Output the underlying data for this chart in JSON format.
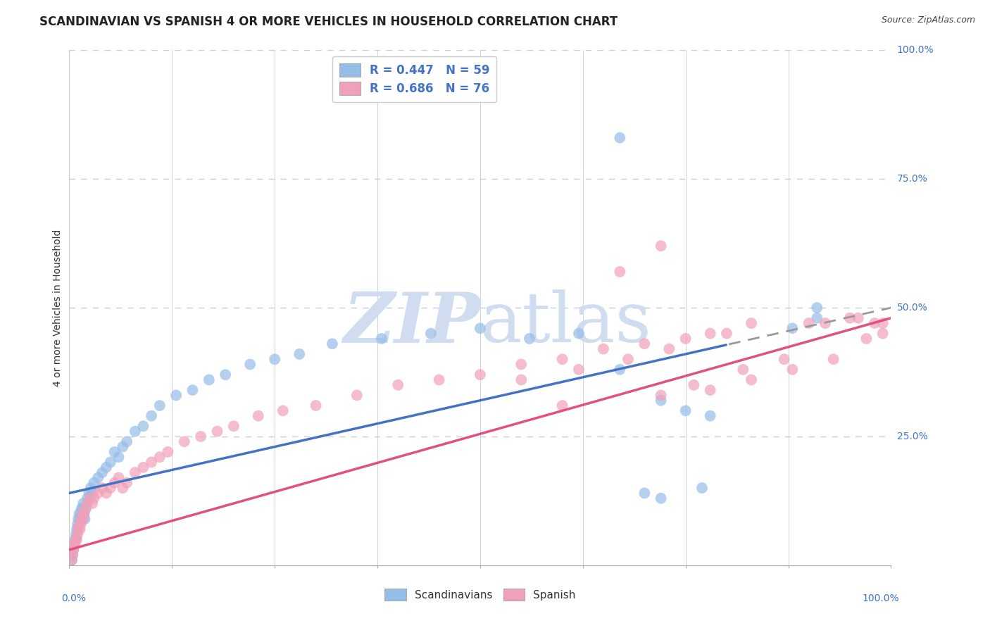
{
  "title": "SCANDINAVIAN VS SPANISH 4 OR MORE VEHICLES IN HOUSEHOLD CORRELATION CHART",
  "source": "Source: ZipAtlas.com",
  "ylabel": "4 or more Vehicles in Household",
  "title_fontsize": 12,
  "source_fontsize": 9,
  "legend_r1": "R = 0.447",
  "legend_n1": "N = 59",
  "legend_r2": "R = 0.686",
  "legend_n2": "N = 76",
  "scatter_blue_color": "#94bde8",
  "scatter_pink_color": "#f0a0b8",
  "line_blue_color": "#4472c4",
  "line_pink_color": "#e05080",
  "watermark_color": "#d0ddf0",
  "background_color": "#ffffff",
  "grid_color": "#c8ccd8",
  "xlim": [
    0,
    100
  ],
  "ylim": [
    0,
    100
  ],
  "blue_line_x0": 0,
  "blue_line_y0": 14,
  "blue_line_x1": 100,
  "blue_line_y1": 50,
  "blue_dash_start": 80,
  "pink_line_x0": 0,
  "pink_line_y0": 3,
  "pink_line_x1": 100,
  "pink_line_y1": 48,
  "scan_x": [
    0.3,
    0.4,
    0.5,
    0.6,
    0.7,
    0.8,
    0.9,
    1.0,
    1.1,
    1.2,
    1.3,
    1.4,
    1.5,
    1.6,
    1.7,
    1.8,
    1.9,
    2.0,
    2.2,
    2.4,
    2.6,
    2.8,
    3.0,
    3.5,
    4.0,
    4.5,
    5.0,
    5.5,
    6.0,
    6.5,
    7.0,
    8.0,
    9.0,
    10.0,
    11.0,
    13.0,
    15.0,
    17.0,
    19.0,
    22.0,
    25.0,
    28.0,
    32.0,
    38.0,
    44.0,
    50.0,
    56.0,
    62.0,
    67.0,
    72.0,
    75.0,
    78.0,
    70.0,
    72.0,
    77.0,
    88.0,
    91.0,
    67.0,
    91.0
  ],
  "scan_y": [
    1,
    2,
    3,
    4,
    5,
    6,
    7,
    8,
    9,
    10,
    9,
    10,
    11,
    11,
    12,
    10,
    9,
    11,
    13,
    14,
    15,
    14,
    16,
    17,
    18,
    19,
    20,
    22,
    21,
    23,
    24,
    26,
    27,
    29,
    31,
    33,
    34,
    36,
    37,
    39,
    40,
    41,
    43,
    44,
    45,
    46,
    44,
    45,
    38,
    32,
    30,
    29,
    14,
    13,
    15,
    46,
    48,
    83,
    50
  ],
  "span_x": [
    0.3,
    0.4,
    0.5,
    0.6,
    0.7,
    0.8,
    0.9,
    1.0,
    1.1,
    1.2,
    1.3,
    1.4,
    1.5,
    1.6,
    1.7,
    1.8,
    2.0,
    2.2,
    2.5,
    2.8,
    3.0,
    3.5,
    4.0,
    4.5,
    5.0,
    5.5,
    6.0,
    6.5,
    7.0,
    8.0,
    9.0,
    10.0,
    11.0,
    12.0,
    14.0,
    16.0,
    18.0,
    20.0,
    23.0,
    26.0,
    30.0,
    35.0,
    40.0,
    45.0,
    50.0,
    55.0,
    60.0,
    65.0,
    70.0,
    75.0,
    80.0,
    90.0,
    95.0,
    60.0,
    72.0,
    76.0,
    82.0,
    87.0,
    92.0,
    96.0,
    98.0,
    99.0,
    67.0,
    72.0,
    78.0,
    83.0,
    88.0,
    93.0,
    97.0,
    99.0,
    55.0,
    62.0,
    68.0,
    73.0,
    78.0,
    83.0
  ],
  "span_y": [
    1,
    2,
    3,
    4,
    4,
    5,
    5,
    6,
    7,
    8,
    7,
    8,
    9,
    10,
    9,
    10,
    11,
    12,
    13,
    12,
    13,
    14,
    15,
    14,
    15,
    16,
    17,
    15,
    16,
    18,
    19,
    20,
    21,
    22,
    24,
    25,
    26,
    27,
    29,
    30,
    31,
    33,
    35,
    36,
    37,
    39,
    40,
    42,
    43,
    44,
    45,
    47,
    48,
    31,
    33,
    35,
    38,
    40,
    47,
    48,
    47,
    45,
    57,
    62,
    34,
    36,
    38,
    40,
    44,
    47,
    36,
    38,
    40,
    42,
    45,
    47
  ]
}
